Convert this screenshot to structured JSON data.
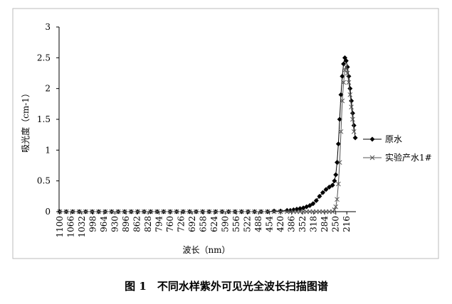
{
  "chart_data": {
    "type": "line",
    "title": "图 1　不同水样紫外可见光全波长扫描图谱",
    "x_label": "波长（nm）",
    "y_label": "吸光度（cm-1）",
    "x": [
      1100,
      1080,
      1060,
      1040,
      1020,
      1000,
      980,
      960,
      940,
      920,
      900,
      880,
      860,
      840,
      820,
      800,
      780,
      760,
      740,
      720,
      700,
      680,
      660,
      640,
      620,
      600,
      580,
      560,
      540,
      520,
      500,
      480,
      460,
      440,
      420,
      400,
      390,
      380,
      370,
      360,
      350,
      340,
      330,
      320,
      310,
      300,
      290,
      280,
      270,
      260,
      254,
      250,
      246,
      242,
      238,
      234,
      230,
      226,
      222,
      218,
      214,
      210,
      206,
      202,
      198,
      194,
      190
    ],
    "series": [
      {
        "name": "原水",
        "color": "#000000",
        "marker": "diamond",
        "values": [
          0,
          0,
          0,
          0,
          0,
          0,
          0,
          0,
          0,
          0,
          0,
          0,
          0,
          0,
          0,
          0,
          0,
          0,
          0,
          0,
          0,
          0,
          0,
          0,
          0,
          0,
          0,
          0,
          0,
          0,
          0,
          0,
          0,
          0.01,
          0.01,
          0.02,
          0.02,
          0.03,
          0.04,
          0.05,
          0.06,
          0.08,
          0.1,
          0.13,
          0.18,
          0.25,
          0.31,
          0.36,
          0.4,
          0.43,
          0.5,
          0.6,
          0.8,
          1.1,
          1.5,
          1.9,
          2.2,
          2.4,
          2.5,
          2.45,
          2.35,
          2.2,
          2.0,
          1.8,
          1.6,
          1.4,
          1.2
        ]
      },
      {
        "name": "实验产水1#",
        "color": "#555555",
        "marker": "x",
        "values": [
          0,
          0,
          0,
          0,
          0,
          0,
          0,
          0,
          0,
          0,
          0,
          0,
          0,
          0,
          0,
          0,
          0,
          0,
          0,
          0,
          0,
          0,
          0,
          0,
          0,
          0,
          0,
          0,
          0,
          0,
          0,
          0,
          0,
          0,
          0,
          0,
          0,
          0,
          0,
          0,
          0,
          0,
          0,
          0,
          0,
          0,
          0,
          0,
          0,
          0,
          0.03,
          0.08,
          0.2,
          0.45,
          0.8,
          1.3,
          1.8,
          2.1,
          2.3,
          2.35,
          2.25,
          2.1,
          1.9,
          1.7,
          1.5,
          1.3,
          null
        ]
      }
    ],
    "xlim": [
      1102,
      188
    ],
    "xticks": [
      1100,
      1066,
      1032,
      998,
      964,
      930,
      896,
      862,
      828,
      794,
      760,
      726,
      692,
      658,
      624,
      590,
      556,
      522,
      488,
      454,
      420,
      386,
      352,
      318,
      284,
      250,
      216
    ],
    "ylim": [
      0,
      3
    ],
    "yticks": [
      0,
      0.5,
      1,
      1.5,
      2,
      2.5,
      3
    ],
    "legend": "right"
  }
}
